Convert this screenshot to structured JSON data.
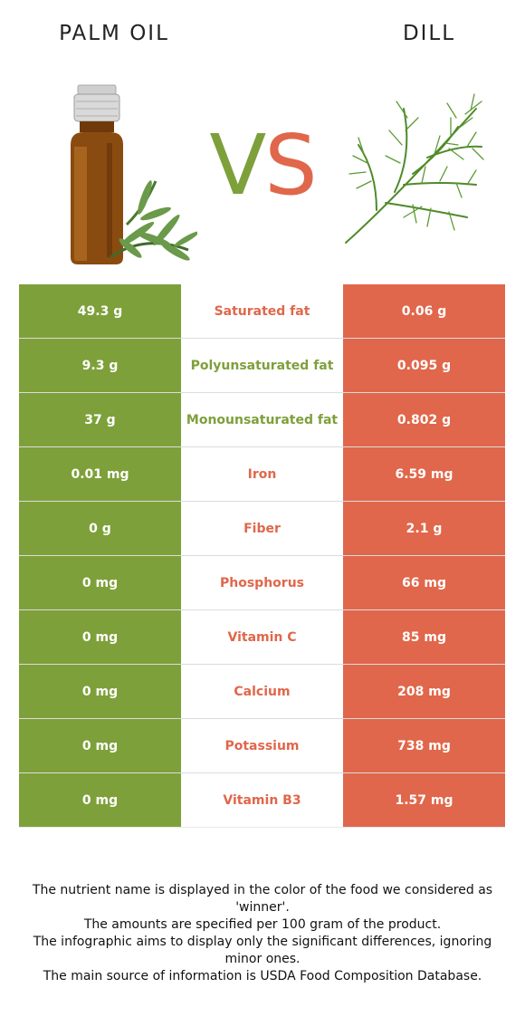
{
  "header": {
    "left_title": "PALM OIL",
    "right_title": "DILL",
    "vs_v": "V",
    "vs_s": "S"
  },
  "colors": {
    "left": "#7ea03a",
    "right": "#e0674b"
  },
  "images": {
    "left": "palm-oil-bottle-with-herb",
    "right": "dill-sprig"
  },
  "rows": [
    {
      "left": "49.3 g",
      "nutrient": "Saturated fat",
      "right": "0.06 g",
      "winner": "right"
    },
    {
      "left": "9.3 g",
      "nutrient": "Polyunsaturated fat",
      "right": "0.095 g",
      "winner": "left"
    },
    {
      "left": "37 g",
      "nutrient": "Monounsaturated fat",
      "right": "0.802 g",
      "winner": "left"
    },
    {
      "left": "0.01 mg",
      "nutrient": "Iron",
      "right": "6.59 mg",
      "winner": "right"
    },
    {
      "left": "0 g",
      "nutrient": "Fiber",
      "right": "2.1 g",
      "winner": "right"
    },
    {
      "left": "0 mg",
      "nutrient": "Phosphorus",
      "right": "66 mg",
      "winner": "right"
    },
    {
      "left": "0 mg",
      "nutrient": "Vitamin C",
      "right": "85 mg",
      "winner": "right"
    },
    {
      "left": "0 mg",
      "nutrient": "Calcium",
      "right": "208 mg",
      "winner": "right"
    },
    {
      "left": "0 mg",
      "nutrient": "Potassium",
      "right": "738 mg",
      "winner": "right"
    },
    {
      "left": "0 mg",
      "nutrient": "Vitamin B3",
      "right": "1.57 mg",
      "winner": "right"
    }
  ],
  "footer": {
    "line1": "The nutrient name is displayed in the color of the food we considered as 'winner'.",
    "line2": "The amounts are specified per 100 gram of the product.",
    "line3": "The infographic aims to display only the significant differences, ignoring minor ones.",
    "line4": "The main source of information is USDA Food Composition Database."
  }
}
